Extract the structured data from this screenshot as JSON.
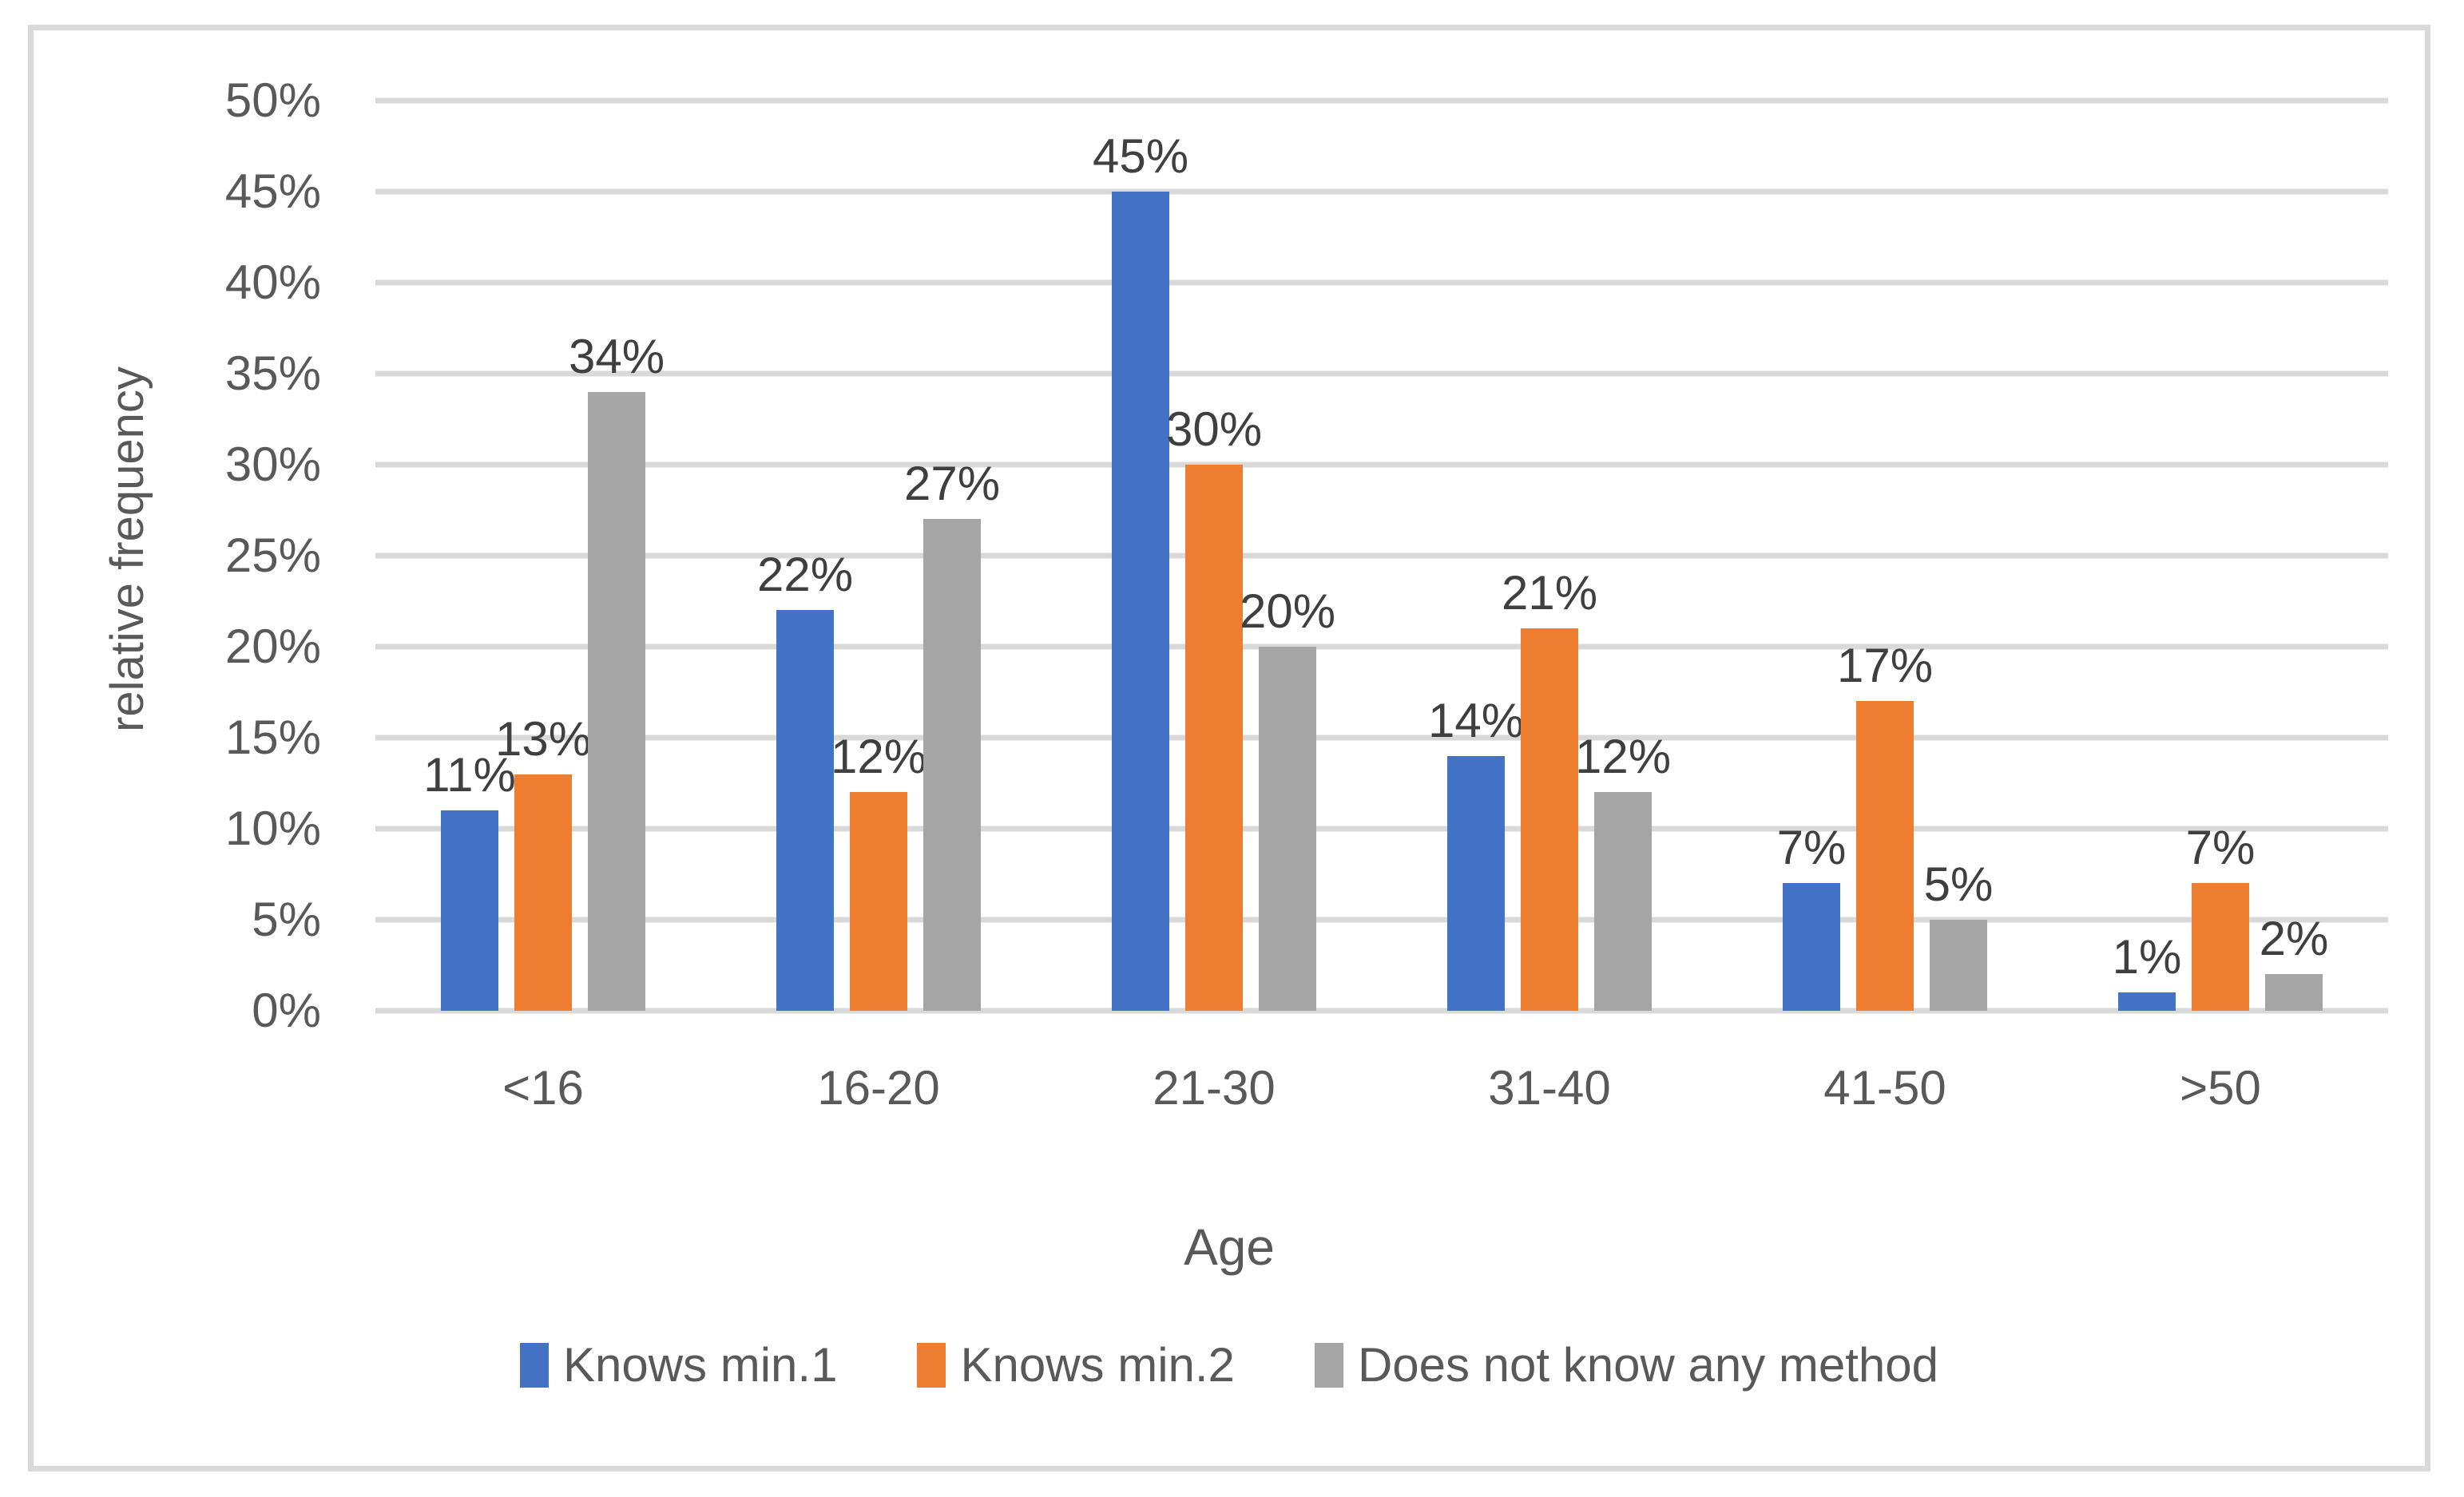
{
  "colors": {
    "series_blue": "#4472C4",
    "series_orange": "#ED7D31",
    "series_gray": "#A5A5A5",
    "gridline": "#D9D9D9",
    "frame_border": "#D9D9D9",
    "axis_text": "#595959",
    "data_label_text": "#3F3F3F",
    "background": "#FFFFFF"
  },
  "chart_data": {
    "type": "bar",
    "categories": [
      "<16",
      "16-20",
      "21-30",
      "31-40",
      "41-50",
      ">50"
    ],
    "series": [
      {
        "name": "Knows min.1",
        "color": "#4472C4",
        "values": [
          11,
          22,
          45,
          14,
          7,
          1
        ],
        "labels": [
          "11%",
          "22%",
          "45%",
          "14%",
          "7%",
          "1%"
        ]
      },
      {
        "name": "Knows min.2",
        "color": "#ED7D31",
        "values": [
          13,
          12,
          30,
          21,
          17,
          7
        ],
        "labels": [
          "13%",
          "12%",
          "30%",
          "21%",
          "17%",
          "7%"
        ]
      },
      {
        "name": "Does not know any method",
        "color": "#A5A5A5",
        "values": [
          34,
          27,
          20,
          12,
          5,
          2
        ],
        "labels": [
          "34%",
          "27%",
          "20%",
          "12%",
          "5%",
          "2%"
        ]
      }
    ],
    "xlabel": "Age",
    "ylabel": "relative frequency",
    "ylim": [
      0,
      50
    ],
    "y_tick_step": 5,
    "y_ticks": [
      "0%",
      "5%",
      "10%",
      "15%",
      "20%",
      "25%",
      "30%",
      "35%",
      "40%",
      "45%",
      "50%"
    ],
    "grid": true,
    "data_labels_shown": true,
    "legend_position": "bottom"
  }
}
